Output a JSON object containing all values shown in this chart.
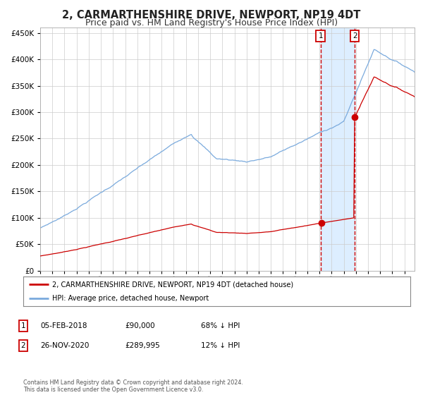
{
  "title": "2, CARMARTHENSHIRE DRIVE, NEWPORT, NP19 4DT",
  "subtitle": "Price paid vs. HM Land Registry's House Price Index (HPI)",
  "title_fontsize": 10.5,
  "subtitle_fontsize": 9,
  "ylim": [
    0,
    460000
  ],
  "xlim_start": 1995.0,
  "xlim_end": 2025.83,
  "sale1_date": 2018.09,
  "sale1_price": 90000,
  "sale1_label": "1",
  "sale2_date": 2020.9,
  "sale2_price": 289995,
  "sale2_label": "2",
  "legend_line1": "2, CARMARTHENSHIRE DRIVE, NEWPORT, NP19 4DT (detached house)",
  "legend_line2": "HPI: Average price, detached house, Newport",
  "table_row1": [
    "1",
    "05-FEB-2018",
    "£90,000",
    "68% ↓ HPI"
  ],
  "table_row2": [
    "2",
    "26-NOV-2020",
    "£289,995",
    "12% ↓ HPI"
  ],
  "footer": "Contains HM Land Registry data © Crown copyright and database right 2024.\nThis data is licensed under the Open Government Licence v3.0.",
  "hpi_color": "#7aaadd",
  "price_color": "#cc0000",
  "background_color": "#ffffff",
  "grid_color": "#cccccc",
  "shade_color": "#ddeeff"
}
